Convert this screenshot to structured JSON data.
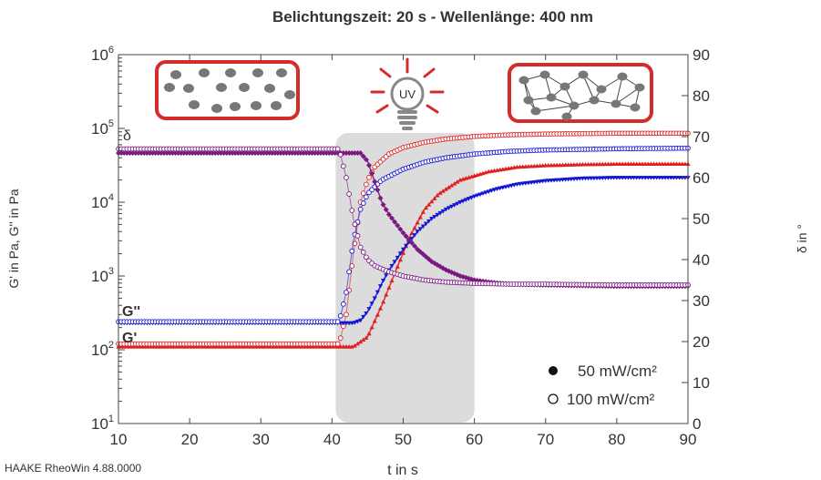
{
  "chart_data": {
    "type": "line",
    "title": "Belichtungszeit: 20 s - Wellenlänge: 400 nm",
    "xlabel": "t in s",
    "ylabel_left": "G' in Pa, G'' in Pa",
    "ylabel_right": "δ in °",
    "footer": "HAAKE RheoWin 4.88.0000",
    "xlim": [
      10,
      90
    ],
    "xticks": [
      "10",
      "20",
      "30",
      "40",
      "50",
      "60",
      "70",
      "80",
      "90"
    ],
    "ylim_left": [
      10,
      1000000
    ],
    "yscale_left": "log",
    "yticks_left": [
      {
        "base": "10",
        "exp": "1"
      },
      {
        "base": "10",
        "exp": "2"
      },
      {
        "base": "10",
        "exp": "3"
      },
      {
        "base": "10",
        "exp": "4"
      },
      {
        "base": "10",
        "exp": "5"
      },
      {
        "base": "10",
        "exp": "6"
      }
    ],
    "ylim_right": [
      0,
      90
    ],
    "yticks_right": [
      "0",
      "10",
      "20",
      "30",
      "40",
      "50",
      "60",
      "70",
      "80",
      "90"
    ],
    "exposure_window": [
      40,
      60
    ],
    "series_labels": {
      "delta": "δ",
      "g2": "G''",
      "g1": "G'"
    },
    "legend": [
      {
        "marker": "filled",
        "label": "50 mW/cm²"
      },
      {
        "marker": "open",
        "label": "100 mW/cm²"
      }
    ],
    "icon_text": "UV",
    "colors": {
      "g1": "#e02020",
      "g2": "#1515d6",
      "delta": "#7a1a80",
      "shade": "#dcdcdc",
      "box": "#d42b2b",
      "bulb": "#888888"
    },
    "series": [
      {
        "group": "g1",
        "marker": "filled",
        "x": [
          10,
          43,
          45,
          47,
          49,
          51,
          53,
          55,
          58,
          62,
          66,
          70,
          75,
          80,
          90
        ],
        "y": [
          110,
          110,
          150,
          400,
          1200,
          3500,
          8000,
          13000,
          20000,
          26000,
          30000,
          31500,
          32500,
          33000,
          33000
        ]
      },
      {
        "group": "g1",
        "marker": "open",
        "x": [
          10,
          41,
          42,
          43,
          44,
          45,
          46,
          48,
          50,
          53,
          56,
          60,
          65,
          70,
          80,
          90
        ],
        "y": [
          120,
          120,
          300,
          2000,
          10000,
          20000,
          30000,
          45000,
          55000,
          65000,
          72000,
          78000,
          82000,
          84000,
          86000,
          86000
        ]
      },
      {
        "group": "g2",
        "marker": "filled",
        "x": [
          10,
          43,
          44,
          45,
          46,
          47,
          48,
          50,
          52,
          54,
          56,
          58,
          60,
          63,
          66,
          70,
          75,
          80,
          90
        ],
        "y": [
          230,
          230,
          250,
          330,
          500,
          800,
          1200,
          2300,
          4000,
          6000,
          8000,
          10000,
          12000,
          15000,
          17500,
          19500,
          21000,
          21500,
          21500
        ]
      },
      {
        "group": "g2",
        "marker": "open",
        "x": [
          10,
          41,
          42,
          43,
          44,
          45,
          47,
          50,
          53,
          56,
          60,
          65,
          70,
          80,
          90
        ],
        "y": [
          240,
          240,
          600,
          3000,
          8000,
          13000,
          20000,
          28000,
          35000,
          40000,
          45000,
          49000,
          51000,
          53000,
          54000
        ]
      },
      {
        "group": "delta",
        "marker": "filled",
        "x": [
          10,
          44,
          45,
          46,
          47,
          48,
          50,
          52,
          54,
          56,
          58,
          60,
          62,
          65,
          70,
          80,
          90
        ],
        "y": [
          66,
          66,
          64,
          59,
          54,
          51,
          46.5,
          42.5,
          39.5,
          37.5,
          36,
          35,
          34.5,
          34,
          33.8,
          33.5,
          33.5
        ]
      },
      {
        "group": "delta",
        "marker": "open",
        "x": [
          10,
          41,
          42,
          43,
          44,
          45,
          46,
          48,
          50,
          53,
          56,
          60,
          65,
          70,
          80,
          90
        ],
        "y": [
          67,
          67,
          60,
          50,
          43,
          40,
          38.5,
          37,
          36,
          35,
          34.5,
          34.2,
          34,
          34,
          33.8,
          33.8
        ]
      }
    ]
  }
}
